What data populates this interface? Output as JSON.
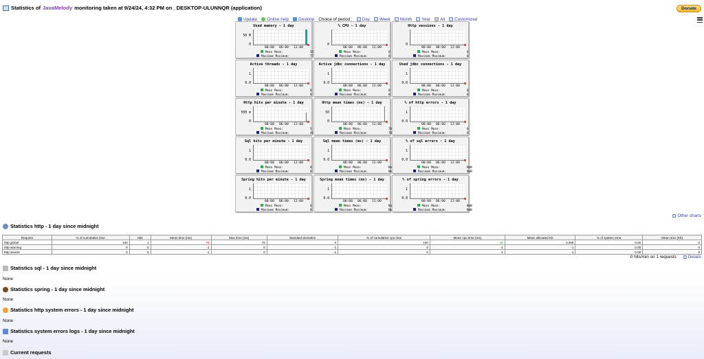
{
  "header": {
    "title_prefix": "Statistics of",
    "app_name": "JavaMelody",
    "title_suffix": "monitoring taken at 9/24/24, 4:32 PM on _DESKTOP-ULUNNQR (application)",
    "donate_label": "Donate"
  },
  "toolbar": {
    "update": "Update",
    "online_help": "Online help",
    "desktop": "Desktop",
    "choice_label": "Choice of period :",
    "periods": [
      "Day",
      "Week",
      "Month",
      "Year",
      "All",
      "Customized"
    ]
  },
  "charts": [
    {
      "title": "Used memory - 1 day",
      "ytop": "50 M",
      "ybot": "0",
      "mean": "55 M",
      "max": "77 M"
    },
    {
      "title": "% CPU - 1 day",
      "ytop": "",
      "ybot": "0",
      "mean": "0",
      "max": "0"
    },
    {
      "title": "Http sessions - 1 day",
      "ytop": "",
      "ybot": "0",
      "mean": "0",
      "max": "0"
    },
    {
      "title": "Active threads - 1 day",
      "ytop": "1",
      "ybot": "0.0",
      "mean": "0",
      "max": "0"
    },
    {
      "title": "Active jdbc connections - 1 day",
      "ytop": "1",
      "ybot": "0.0",
      "mean": "0",
      "max": "0"
    },
    {
      "title": "Used jdbc connections - 1 day",
      "ytop": "1",
      "ybot": "0.0",
      "mean": "0",
      "max": "0"
    },
    {
      "title": "Http hits per minute - 1 day",
      "ytop": "500 m",
      "ybot": "0",
      "mean": "5 m",
      "max": "417 m"
    },
    {
      "title": "Http mean times (ms) - 1 day",
      "ytop": "50",
      "ybot": "0",
      "mean": "78",
      "max": "78"
    },
    {
      "title": "% of http errors - 1 day",
      "ytop": "1",
      "ybot": "0.0",
      "mean": "0",
      "max": "0"
    },
    {
      "title": "Sql hits per minute - 1 day",
      "ytop": "1",
      "ybot": "0.0",
      "mean": "0",
      "max": "0"
    },
    {
      "title": "Sql mean times (ms) - 1 day",
      "ytop": "1",
      "ybot": "0.0",
      "mean": "NaN",
      "max": "NaN"
    },
    {
      "title": "% of sql errors - 1 day",
      "ytop": "1",
      "ybot": "0.0",
      "mean": "NaN",
      "max": "NaN"
    },
    {
      "title": "Spring hits per minute - 1 day",
      "ytop": "1",
      "ybot": "0.0",
      "mean": "0",
      "max": "0"
    },
    {
      "title": "Spring mean times (ms) - 1 day",
      "ytop": "1",
      "ybot": "0.0",
      "mean": "NaN",
      "max": "NaN"
    },
    {
      "title": "% of spring errors - 1 day",
      "ytop": "1",
      "ybot": "0.0",
      "mean": "NaN",
      "max": "NaN"
    }
  ],
  "chart_common": {
    "x_ticks": [
      "00:00",
      "06:00",
      "12:00"
    ],
    "mean_label": "Mean",
    "max_label": "Maximum",
    "mean_colon": "Mean:",
    "max_colon": "Maximum:"
  },
  "other_charts": "Other charts",
  "http_stats": {
    "heading": "Statistics http - 1 day since midnight",
    "columns": [
      "Request",
      "% of cumulative time",
      "Hits",
      "Mean time (ms)",
      "Max time (ms)",
      "Standard deviation",
      "% of cumulative cpu time",
      "Mean cpu time (ms)",
      "Mean allocated Kb",
      "% of system error",
      "Mean size (Kb)"
    ],
    "rows": [
      [
        "http global",
        "100",
        "1",
        "78",
        "78",
        "0",
        "100",
        "15",
        "3,456",
        "0.00",
        "0"
      ],
      [
        "http warning",
        "0",
        "0",
        "-1",
        "0",
        "-1",
        "0",
        "-1",
        "-1",
        "0.00",
        "0"
      ],
      [
        "http severe",
        "0",
        "0",
        "-1",
        "0",
        "-1",
        "0",
        "-1",
        "-1",
        "0.00",
        "0"
      ]
    ],
    "hits_summary": "0 hits/min on 1 requests",
    "details": "Details"
  },
  "sql_stats": {
    "heading": "Statistics sql - 1 day since midnight",
    "none": "None"
  },
  "spring_stats": {
    "heading": "Statistics spring - 1 day since midnight",
    "none": "None"
  },
  "system_errors": {
    "heading": "Statistics http system errors - 1 day since midnight",
    "none": "None"
  },
  "error_logs": {
    "heading": "Statistics system errors logs - 1 day since midnight",
    "none": "None"
  },
  "current_requests": {
    "heading": "Current requests"
  }
}
